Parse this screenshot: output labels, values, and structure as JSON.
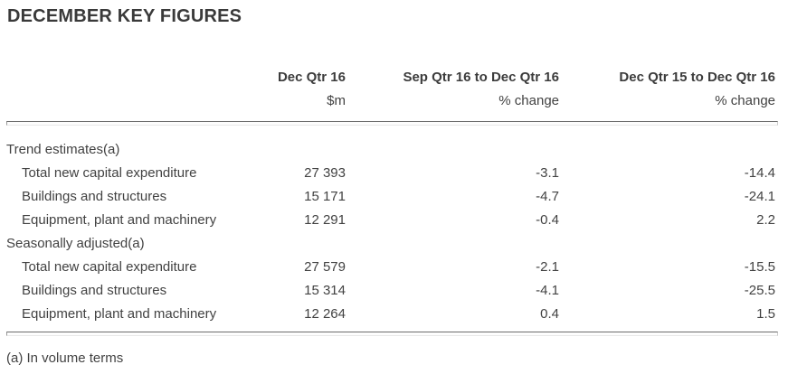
{
  "title": "DECEMBER KEY FIGURES",
  "table": {
    "columns": [
      {
        "label": "Dec Qtr 16",
        "sublabel": "$m"
      },
      {
        "label": "Sep Qtr 16 to Dec Qtr 16",
        "sublabel": "% change"
      },
      {
        "label": "Dec Qtr 15 to Dec Qtr 16",
        "sublabel": "% change"
      }
    ],
    "sections": [
      {
        "heading": "Trend estimates(a)",
        "rows": [
          {
            "label": "Total new capital expenditure",
            "values": [
              "27 393",
              "-3.1",
              "-14.4"
            ]
          },
          {
            "label": "Buildings and structures",
            "values": [
              "15 171",
              "-4.7",
              "-24.1"
            ]
          },
          {
            "label": "Equipment, plant and machinery",
            "values": [
              "12 291",
              "-0.4",
              "2.2"
            ]
          }
        ]
      },
      {
        "heading": "Seasonally adjusted(a)",
        "rows": [
          {
            "label": "Total new capital expenditure",
            "values": [
              "27 579",
              "-2.1",
              "-15.5"
            ]
          },
          {
            "label": "Buildings and structures",
            "values": [
              "15 314",
              "-4.1",
              "-25.5"
            ]
          },
          {
            "label": "Equipment, plant and machinery",
            "values": [
              "12 264",
              "0.4",
              "1.5"
            ]
          }
        ]
      }
    ],
    "footnote": "(a) In volume terms"
  },
  "colors": {
    "text": "#424242",
    "title": "#3a3a3a",
    "rule_dark": "#6d6d6d",
    "rule_light": "#e9e9e9"
  }
}
